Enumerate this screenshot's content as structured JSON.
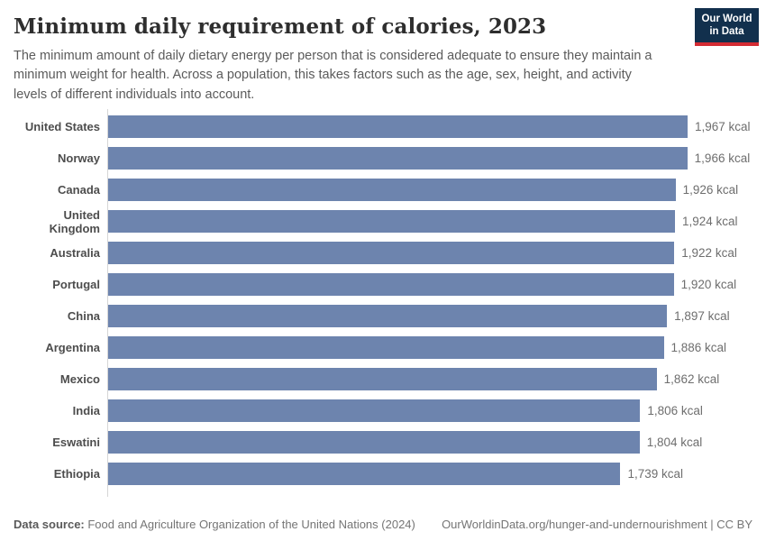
{
  "header": {
    "title": "Minimum daily requirement of calories, 2023",
    "subtitle": "The minimum amount of daily dietary energy per person that is considered adequate to ensure they maintain a minimum weight for health. Across a population, this takes factors such as the age, sex, height, and activity levels of different individuals into account.",
    "logo": {
      "line1": "Our World",
      "line2": "in Data"
    }
  },
  "chart_data": {
    "type": "bar",
    "orientation": "horizontal",
    "title": "Minimum daily requirement of calories, 2023",
    "unit": "kcal",
    "xlim": [
      0,
      1967
    ],
    "grid": false,
    "bar_color": "#6d84ae",
    "categories": [
      "United States",
      "Norway",
      "Canada",
      "United Kingdom",
      "Australia",
      "Portugal",
      "China",
      "Argentina",
      "Mexico",
      "India",
      "Eswatini",
      "Ethiopia"
    ],
    "values": [
      1967,
      1966,
      1926,
      1924,
      1922,
      1920,
      1897,
      1886,
      1862,
      1806,
      1804,
      1739
    ],
    "value_labels": [
      "1,967 kcal",
      "1,966 kcal",
      "1,926 kcal",
      "1,924 kcal",
      "1,922 kcal",
      "1,920 kcal",
      "1,897 kcal",
      "1,886 kcal",
      "1,862 kcal",
      "1,806 kcal",
      "1,804 kcal",
      "1,739 kcal"
    ]
  },
  "footer": {
    "source_label": "Data source:",
    "source_text": " Food and Agriculture Organization of the United Nations (2024)",
    "link": "OurWorldinData.org/hunger-and-undernourishment",
    "separator": " | ",
    "license": "CC BY"
  },
  "colors": {
    "bar": "#6d84ae",
    "axis_line": "#d6d6d6",
    "logo_background": "#12304d",
    "logo_accent": "#d42b33",
    "title_text": "#2e2e2e",
    "subtitle_text": "#5b5b5b"
  }
}
